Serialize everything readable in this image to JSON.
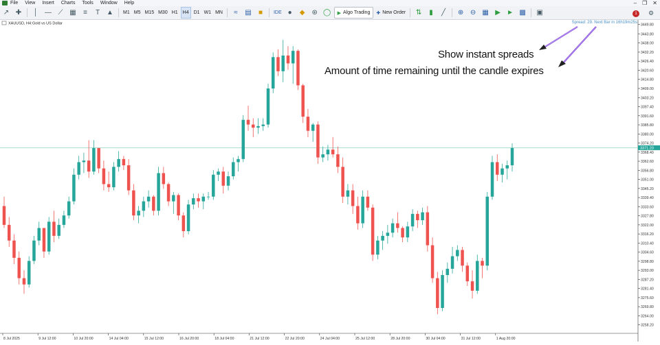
{
  "menu": {
    "items": [
      "File",
      "View",
      "Insert",
      "Charts",
      "Tools",
      "Window",
      "Help"
    ]
  },
  "toolbar": {
    "timeframes": [
      "M1",
      "M5",
      "M15",
      "M30",
      "H1",
      "H4",
      "D1",
      "W1",
      "MN"
    ],
    "active_timeframe": "H4",
    "ide_label": "IDE",
    "algo_trading_label": "Algo Trading",
    "new_order_label": "New Order",
    "notification_count": "1"
  },
  "chart_header": {
    "symbol": "XAUUSD, H4:",
    "description": "Gold vs US Dollar"
  },
  "info_overlay": "Spread: 29. Next Bar in 16h19m25s",
  "annotations": {
    "spreads": "Show instant spreads",
    "timer": "Amount of time remaining until the candle expires"
  },
  "colors": {
    "bull": "#26a69a",
    "bear": "#ef5350",
    "bid_line": "#8fd3c0",
    "price_label_bg": "#26a69a",
    "arrow": "#7b3fd6"
  },
  "chart_data": {
    "type": "candlestick",
    "symbol": "XAUUSD",
    "timeframe": "H4",
    "current_price": "3371.20",
    "price_ticks": [
      "3449.80",
      "3443.80",
      "3438.00",
      "3432.20",
      "3426.40",
      "3420.60",
      "3414.80",
      "3409.00",
      "3403.20",
      "3397.40",
      "3391.60",
      "3385.80",
      "3380.00",
      "3374.20",
      "3368.40",
      "3362.60",
      "3356.80",
      "3351.00",
      "3345.20",
      "3339.40",
      "3333.60",
      "3327.80",
      "3322.00",
      "3316.20",
      "3310.40",
      "3304.60",
      "3298.80",
      "3293.00",
      "3287.20",
      "3281.40",
      "3275.60",
      "3269.80",
      "3264.00",
      "3258.20"
    ],
    "price_min": 3255.0,
    "price_max": 3451.0,
    "time_ticks": [
      "8 Jul 2025",
      "9 Jul 12:00",
      "10 Jul 20:00",
      "14 Jul 04:00",
      "15 Jul 12:00",
      "16 Jul 20:00",
      "18 Jul 04:00",
      "21 Jul 12:00",
      "22 Jul 20:00",
      "24 Jul 04:00",
      "25 Jul 12:00",
      "28 Jul 20:00",
      "30 Jul 04:00",
      "31 Jul 12:00",
      "1 Aug 20:00"
    ],
    "candles": [
      [
        3334,
        3340,
        3320,
        3322
      ],
      [
        3322,
        3327,
        3308,
        3312
      ],
      [
        3312,
        3316,
        3297,
        3301
      ],
      [
        3301,
        3305,
        3284,
        3288
      ],
      [
        3288,
        3293,
        3278,
        3284
      ],
      [
        3284,
        3302,
        3282,
        3299
      ],
      [
        3299,
        3315,
        3297,
        3312
      ],
      [
        3312,
        3324,
        3309,
        3320
      ],
      [
        3320,
        3320,
        3301,
        3305
      ],
      [
        3305,
        3327,
        3303,
        3324
      ],
      [
        3324,
        3331,
        3311,
        3315
      ],
      [
        3315,
        3326,
        3313,
        3322
      ],
      [
        3322,
        3331,
        3320,
        3328
      ],
      [
        3328,
        3340,
        3326,
        3337
      ],
      [
        3337,
        3358,
        3335,
        3354
      ],
      [
        3354,
        3366,
        3351,
        3362
      ],
      [
        3362,
        3368,
        3355,
        3363
      ],
      [
        3363,
        3376,
        3352,
        3356
      ],
      [
        3356,
        3376,
        3354,
        3371
      ],
      [
        3371,
        3371,
        3355,
        3358
      ],
      [
        3358,
        3363,
        3344,
        3348
      ],
      [
        3348,
        3356,
        3343,
        3346
      ],
      [
        3346,
        3362,
        3344,
        3359
      ],
      [
        3359,
        3369,
        3356,
        3364
      ],
      [
        3364,
        3366,
        3357,
        3360
      ],
      [
        3360,
        3364,
        3341,
        3344
      ],
      [
        3344,
        3348,
        3325,
        3328
      ],
      [
        3328,
        3334,
        3323,
        3331
      ],
      [
        3331,
        3340,
        3327,
        3337
      ],
      [
        3337,
        3344,
        3333,
        3340
      ],
      [
        3340,
        3341,
        3328,
        3331
      ],
      [
        3331,
        3359,
        3328,
        3355
      ],
      [
        3355,
        3359,
        3345,
        3348
      ],
      [
        3348,
        3349,
        3334,
        3337
      ],
      [
        3337,
        3343,
        3329,
        3341
      ],
      [
        3341,
        3342,
        3325,
        3328
      ],
      [
        3328,
        3330,
        3314,
        3318
      ],
      [
        3318,
        3338,
        3316,
        3335
      ],
      [
        3335,
        3342,
        3332,
        3339
      ],
      [
        3339,
        3342,
        3333,
        3337
      ],
      [
        3337,
        3342,
        3332,
        3340
      ],
      [
        3340,
        3343,
        3338,
        3340
      ],
      [
        3340,
        3357,
        3338,
        3354
      ],
      [
        3354,
        3358,
        3350,
        3356
      ],
      [
        3356,
        3359,
        3342,
        3347
      ],
      [
        3347,
        3356,
        3344,
        3353
      ],
      [
        3353,
        3365,
        3351,
        3362
      ],
      [
        3362,
        3366,
        3356,
        3364
      ],
      [
        3364,
        3392,
        3362,
        3389
      ],
      [
        3389,
        3398,
        3382,
        3386
      ],
      [
        3386,
        3390,
        3378,
        3384
      ],
      [
        3384,
        3390,
        3380,
        3385
      ],
      [
        3385,
        3390,
        3382,
        3386
      ],
      [
        3386,
        3412,
        3384,
        3409
      ],
      [
        3409,
        3432,
        3406,
        3429
      ],
      [
        3429,
        3434,
        3417,
        3420
      ],
      [
        3420,
        3440,
        3413,
        3430
      ],
      [
        3430,
        3436,
        3421,
        3425
      ],
      [
        3425,
        3436,
        3412,
        3433
      ],
      [
        3433,
        3434,
        3408,
        3411
      ],
      [
        3411,
        3412,
        3387,
        3391
      ],
      [
        3391,
        3396,
        3378,
        3382
      ],
      [
        3382,
        3387,
        3375,
        3386
      ],
      [
        3386,
        3388,
        3361,
        3365
      ],
      [
        3365,
        3372,
        3362,
        3367
      ],
      [
        3367,
        3373,
        3363,
        3370
      ],
      [
        3370,
        3378,
        3365,
        3367
      ],
      [
        3367,
        3372,
        3355,
        3359
      ],
      [
        3359,
        3365,
        3336,
        3340
      ],
      [
        3340,
        3348,
        3335,
        3344
      ],
      [
        3344,
        3348,
        3329,
        3334
      ],
      [
        3334,
        3340,
        3319,
        3323
      ],
      [
        3323,
        3344,
        3320,
        3340
      ],
      [
        3340,
        3344,
        3331,
        3333
      ],
      [
        3333,
        3335,
        3299,
        3303
      ],
      [
        3303,
        3315,
        3300,
        3312
      ],
      [
        3312,
        3318,
        3306,
        3315
      ],
      [
        3315,
        3322,
        3310,
        3317
      ],
      [
        3317,
        3326,
        3314,
        3323
      ],
      [
        3323,
        3330,
        3317,
        3320
      ],
      [
        3320,
        3321,
        3311,
        3314
      ],
      [
        3314,
        3324,
        3311,
        3321
      ],
      [
        3321,
        3332,
        3318,
        3329
      ],
      [
        3329,
        3331,
        3320,
        3325
      ],
      [
        3325,
        3333,
        3322,
        3330
      ],
      [
        3330,
        3334,
        3305,
        3309
      ],
      [
        3309,
        3314,
        3285,
        3288
      ],
      [
        3288,
        3292,
        3265,
        3269
      ],
      [
        3269,
        3293,
        3267,
        3290
      ],
      [
        3290,
        3298,
        3285,
        3294
      ],
      [
        3294,
        3308,
        3291,
        3302
      ],
      [
        3302,
        3309,
        3299,
        3306
      ],
      [
        3306,
        3308,
        3292,
        3296
      ],
      [
        3296,
        3298,
        3283,
        3286
      ],
      [
        3286,
        3293,
        3275,
        3280
      ],
      [
        3280,
        3303,
        3278,
        3299
      ],
      [
        3299,
        3301,
        3288,
        3296
      ],
      [
        3296,
        3343,
        3293,
        3340
      ],
      [
        3340,
        3366,
        3338,
        3362
      ],
      [
        3362,
        3367,
        3350,
        3354
      ],
      [
        3354,
        3361,
        3349,
        3358
      ],
      [
        3358,
        3363,
        3351,
        3360
      ],
      [
        3360,
        3374,
        3356,
        3371
      ]
    ]
  }
}
